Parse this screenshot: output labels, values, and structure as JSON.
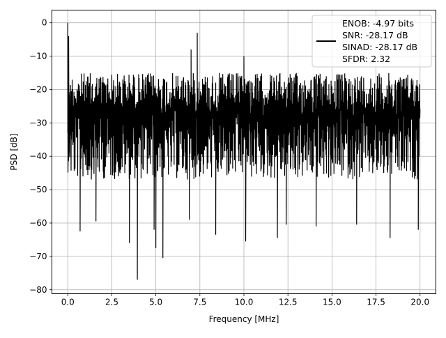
{
  "chart_data": {
    "type": "line",
    "title": "",
    "xlabel": "Frequency [MHz]",
    "ylabel": "PSD [dB]",
    "xlim": [
      -0.9,
      20.9
    ],
    "ylim": [
      -81.2,
      3.8
    ],
    "xticks": [
      0.0,
      2.5,
      5.0,
      7.5,
      10.0,
      12.5,
      15.0,
      17.5,
      20.0
    ],
    "xtick_labels": [
      "0.0",
      "2.5",
      "5.0",
      "7.5",
      "10.0",
      "12.5",
      "15.0",
      "17.5",
      "20.0"
    ],
    "yticks": [
      0,
      -10,
      -20,
      -30,
      -40,
      -50,
      -60,
      -70,
      -80
    ],
    "ytick_labels": [
      "0",
      "−10",
      "−20",
      "−30",
      "−40",
      "−50",
      "−60",
      "−70",
      "−80"
    ],
    "grid": true,
    "legend_position": "top-right",
    "line_color": "#000000",
    "legend": [
      "ENOB: -4.97 bits",
      "SNR: -28.17 dB",
      "SINAD: -28.17 dB",
      "SFDR: 2.32"
    ],
    "series": [
      {
        "description": "noise-like power spectral density, roughly between -47 and -15 dB",
        "x_range": [
          0,
          20
        ],
        "peaks": [
          {
            "x": 0.0,
            "y": 0
          },
          {
            "x": 0.05,
            "y": -4
          },
          {
            "x": 7.35,
            "y": -3
          },
          {
            "x": 7.0,
            "y": -8
          },
          {
            "x": 10.0,
            "y": -10
          }
        ],
        "dips": [
          {
            "x": 0.7,
            "y": -62.5
          },
          {
            "x": 1.6,
            "y": -59.5
          },
          {
            "x": 3.5,
            "y": -66
          },
          {
            "x": 3.95,
            "y": -77
          },
          {
            "x": 4.9,
            "y": -62
          },
          {
            "x": 5.0,
            "y": -67.5
          },
          {
            "x": 5.4,
            "y": -70.5
          },
          {
            "x": 6.9,
            "y": -59
          },
          {
            "x": 8.4,
            "y": -63.5
          },
          {
            "x": 10.1,
            "y": -65.5
          },
          {
            "x": 11.9,
            "y": -64.5
          },
          {
            "x": 12.4,
            "y": -60.5
          },
          {
            "x": 14.1,
            "y": -61
          },
          {
            "x": 16.4,
            "y": -60.5
          },
          {
            "x": 18.3,
            "y": -64.5
          },
          {
            "x": 19.9,
            "y": -62
          }
        ]
      }
    ]
  }
}
